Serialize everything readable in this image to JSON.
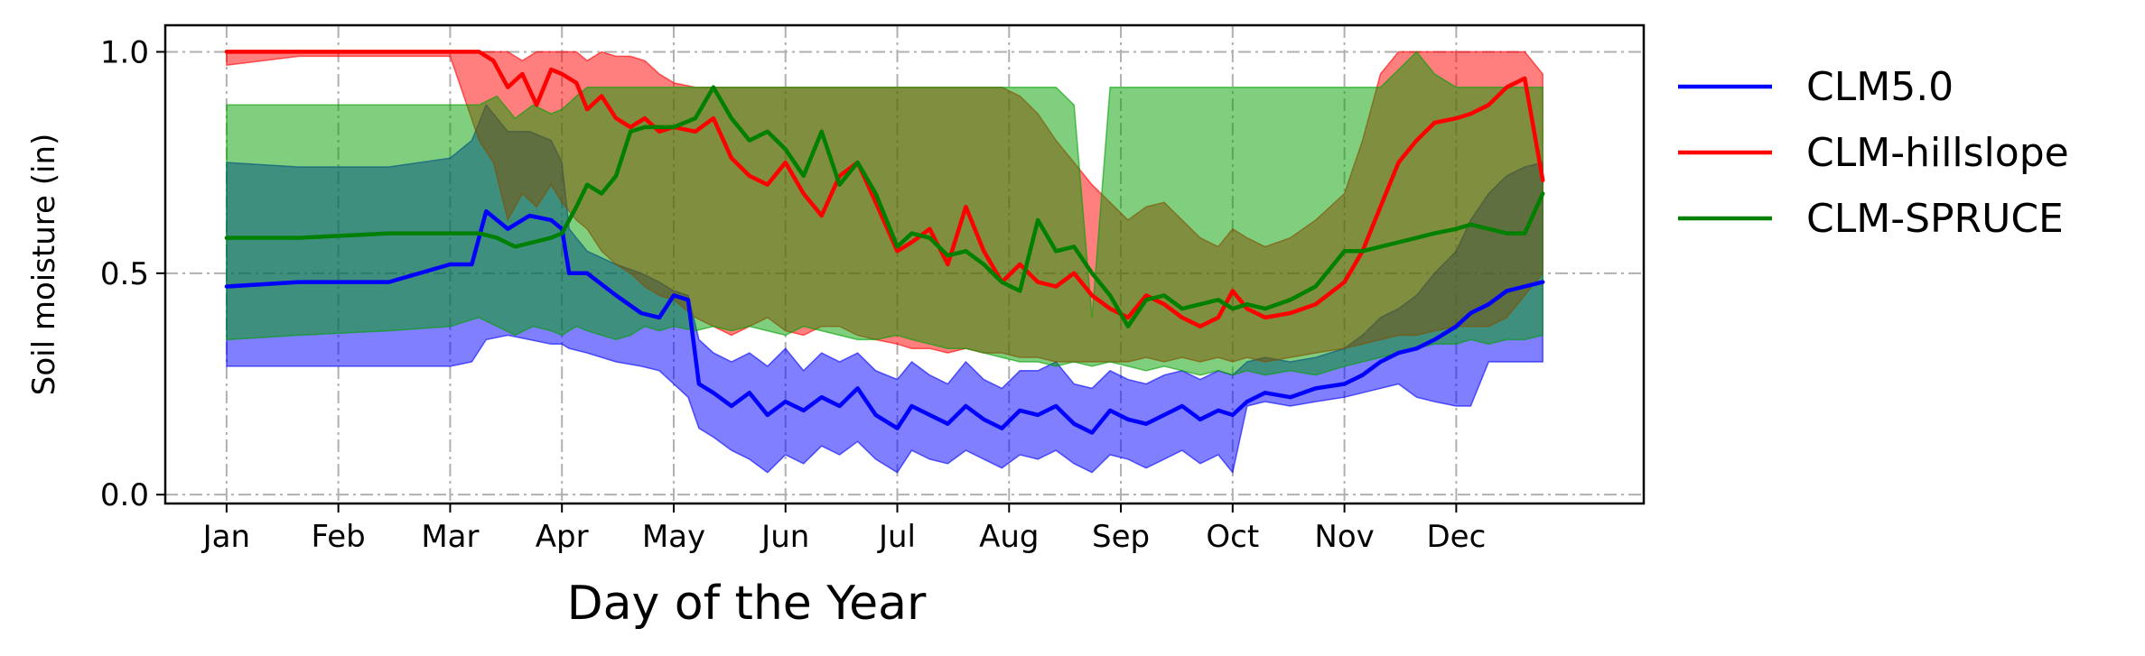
{
  "chart_data": {
    "type": "area",
    "title": "",
    "xlabel": "Day of the Year",
    "ylabel": "Soil moisture (in)",
    "xlim": [
      -17,
      393
    ],
    "ylim": [
      -0.02,
      1.06
    ],
    "x_ticks": [
      {
        "label": "Jan",
        "value": 0
      },
      {
        "label": "Feb",
        "value": 31
      },
      {
        "label": "Mar",
        "value": 62
      },
      {
        "label": "Apr",
        "value": 93
      },
      {
        "label": "May",
        "value": 124
      },
      {
        "label": "Jun",
        "value": 155
      },
      {
        "label": "Jul",
        "value": 186
      },
      {
        "label": "Aug",
        "value": 217
      },
      {
        "label": "Sep",
        "value": 248
      },
      {
        "label": "Oct",
        "value": 279
      },
      {
        "label": "Nov",
        "value": 310
      },
      {
        "label": "Dec",
        "value": 341
      }
    ],
    "y_ticks": [
      {
        "label": "0.0",
        "value": 0.0
      },
      {
        "label": "0.5",
        "value": 0.5
      },
      {
        "label": "1.0",
        "value": 1.0
      }
    ],
    "grid": true,
    "grid_style": "dash-dot",
    "legend_position": "outside-right",
    "series": [
      {
        "name": "CLM5.0",
        "color": "#0000ff",
        "fill_color": "#0000ff",
        "fill_opacity": 0.5,
        "x": [
          0,
          20,
          45,
          62,
          68,
          72,
          78,
          84,
          90,
          93,
          95,
          100,
          108,
          115,
          120,
          124,
          128,
          131,
          135,
          140,
          145,
          150,
          155,
          160,
          165,
          170,
          175,
          180,
          186,
          190,
          195,
          200,
          205,
          210,
          215,
          220,
          225,
          230,
          235,
          240,
          245,
          250,
          255,
          260,
          265,
          270,
          275,
          279,
          283,
          288,
          295,
          302,
          310,
          315,
          320,
          325,
          330,
          335,
          341,
          345,
          350,
          355,
          360,
          365
        ],
        "mean": [
          0.47,
          0.48,
          0.48,
          0.52,
          0.52,
          0.64,
          0.6,
          0.63,
          0.62,
          0.6,
          0.5,
          0.5,
          0.45,
          0.41,
          0.4,
          0.45,
          0.44,
          0.25,
          0.23,
          0.2,
          0.23,
          0.18,
          0.21,
          0.19,
          0.22,
          0.2,
          0.24,
          0.18,
          0.15,
          0.2,
          0.18,
          0.16,
          0.2,
          0.17,
          0.15,
          0.19,
          0.18,
          0.2,
          0.16,
          0.14,
          0.19,
          0.17,
          0.16,
          0.18,
          0.2,
          0.17,
          0.19,
          0.18,
          0.21,
          0.23,
          0.22,
          0.24,
          0.25,
          0.27,
          0.3,
          0.32,
          0.33,
          0.35,
          0.38,
          0.41,
          0.43,
          0.46,
          0.47,
          0.48
        ],
        "upper": [
          0.75,
          0.74,
          0.74,
          0.76,
          0.8,
          0.88,
          0.82,
          0.82,
          0.8,
          0.75,
          0.6,
          0.55,
          0.52,
          0.5,
          0.48,
          0.46,
          0.45,
          0.35,
          0.32,
          0.3,
          0.32,
          0.29,
          0.33,
          0.28,
          0.32,
          0.3,
          0.32,
          0.28,
          0.26,
          0.3,
          0.27,
          0.25,
          0.3,
          0.26,
          0.24,
          0.28,
          0.28,
          0.3,
          0.25,
          0.24,
          0.28,
          0.26,
          0.25,
          0.27,
          0.28,
          0.26,
          0.28,
          0.27,
          0.3,
          0.31,
          0.3,
          0.31,
          0.33,
          0.36,
          0.4,
          0.42,
          0.45,
          0.5,
          0.55,
          0.62,
          0.68,
          0.72,
          0.74,
          0.75
        ],
        "lower": [
          0.29,
          0.29,
          0.29,
          0.29,
          0.3,
          0.35,
          0.36,
          0.35,
          0.34,
          0.34,
          0.33,
          0.32,
          0.3,
          0.29,
          0.28,
          0.25,
          0.22,
          0.15,
          0.13,
          0.1,
          0.08,
          0.05,
          0.09,
          0.07,
          0.11,
          0.09,
          0.12,
          0.08,
          0.05,
          0.1,
          0.08,
          0.07,
          0.1,
          0.08,
          0.06,
          0.09,
          0.08,
          0.1,
          0.07,
          0.05,
          0.09,
          0.08,
          0.06,
          0.08,
          0.1,
          0.07,
          0.09,
          0.05,
          0.2,
          0.21,
          0.2,
          0.21,
          0.22,
          0.23,
          0.24,
          0.25,
          0.22,
          0.21,
          0.2,
          0.2,
          0.3,
          0.3,
          0.3,
          0.3
        ]
      },
      {
        "name": "CLM-hillslope",
        "color": "#ff0000",
        "fill_color": "#ff0000",
        "fill_opacity": 0.5,
        "x": [
          0,
          20,
          45,
          62,
          70,
          74,
          78,
          82,
          86,
          90,
          93,
          97,
          100,
          104,
          108,
          112,
          116,
          120,
          124,
          130,
          135,
          140,
          145,
          150,
          155,
          160,
          165,
          170,
          175,
          180,
          186,
          190,
          195,
          200,
          205,
          210,
          215,
          220,
          225,
          230,
          235,
          240,
          245,
          250,
          255,
          260,
          265,
          270,
          275,
          279,
          283,
          288,
          295,
          302,
          310,
          315,
          320,
          325,
          330,
          335,
          341,
          345,
          350,
          355,
          360,
          365
        ],
        "mean": [
          1.0,
          1.0,
          1.0,
          1.0,
          1.0,
          0.98,
          0.92,
          0.95,
          0.88,
          0.96,
          0.95,
          0.93,
          0.87,
          0.9,
          0.85,
          0.83,
          0.85,
          0.82,
          0.83,
          0.82,
          0.85,
          0.76,
          0.72,
          0.7,
          0.75,
          0.68,
          0.63,
          0.72,
          0.75,
          0.66,
          0.55,
          0.57,
          0.6,
          0.52,
          0.65,
          0.55,
          0.48,
          0.52,
          0.48,
          0.47,
          0.5,
          0.45,
          0.42,
          0.4,
          0.45,
          0.43,
          0.4,
          0.38,
          0.4,
          0.46,
          0.42,
          0.4,
          0.41,
          0.43,
          0.48,
          0.55,
          0.65,
          0.75,
          0.8,
          0.84,
          0.85,
          0.86,
          0.88,
          0.92,
          0.94,
          0.71
        ],
        "upper": [
          1.0,
          1.0,
          1.0,
          1.0,
          1.0,
          1.0,
          1.0,
          0.98,
          1.0,
          1.0,
          1.0,
          1.0,
          0.98,
          1.0,
          0.99,
          0.99,
          0.98,
          0.95,
          0.93,
          0.92,
          0.92,
          0.92,
          0.92,
          0.92,
          0.92,
          0.92,
          0.92,
          0.92,
          0.92,
          0.92,
          0.92,
          0.92,
          0.92,
          0.92,
          0.92,
          0.92,
          0.92,
          0.9,
          0.86,
          0.8,
          0.75,
          0.7,
          0.66,
          0.62,
          0.65,
          0.66,
          0.62,
          0.58,
          0.56,
          0.6,
          0.58,
          0.56,
          0.58,
          0.62,
          0.68,
          0.8,
          0.95,
          1.0,
          1.0,
          1.0,
          1.0,
          1.0,
          1.0,
          1.0,
          1.0,
          0.95
        ],
        "lower": [
          0.97,
          0.99,
          0.99,
          0.99,
          0.8,
          0.75,
          0.62,
          0.68,
          0.65,
          0.7,
          0.66,
          0.62,
          0.6,
          0.55,
          0.52,
          0.5,
          0.47,
          0.45,
          0.44,
          0.4,
          0.38,
          0.36,
          0.38,
          0.4,
          0.37,
          0.36,
          0.38,
          0.38,
          0.36,
          0.35,
          0.34,
          0.33,
          0.33,
          0.32,
          0.33,
          0.32,
          0.32,
          0.31,
          0.31,
          0.3,
          0.3,
          0.3,
          0.3,
          0.3,
          0.31,
          0.3,
          0.31,
          0.3,
          0.31,
          0.3,
          0.31,
          0.3,
          0.31,
          0.32,
          0.33,
          0.34,
          0.35,
          0.36,
          0.36,
          0.37,
          0.38,
          0.38,
          0.38,
          0.4,
          0.45,
          0.5
        ]
      },
      {
        "name": "CLM-SPRUCE",
        "color": "#008000",
        "fill_color": "#00a000",
        "fill_opacity": 0.5,
        "x": [
          0,
          20,
          45,
          62,
          70,
          75,
          80,
          85,
          90,
          93,
          97,
          100,
          104,
          108,
          112,
          116,
          120,
          124,
          130,
          135,
          140,
          145,
          150,
          155,
          160,
          165,
          170,
          175,
          180,
          186,
          190,
          195,
          200,
          205,
          210,
          215,
          220,
          225,
          230,
          235,
          240,
          245,
          250,
          255,
          260,
          265,
          270,
          275,
          279,
          283,
          288,
          295,
          302,
          310,
          315,
          320,
          325,
          330,
          335,
          341,
          345,
          350,
          355,
          360,
          365
        ],
        "mean": [
          0.58,
          0.58,
          0.59,
          0.59,
          0.59,
          0.58,
          0.56,
          0.57,
          0.58,
          0.59,
          0.65,
          0.7,
          0.68,
          0.72,
          0.82,
          0.83,
          0.83,
          0.83,
          0.85,
          0.92,
          0.85,
          0.8,
          0.82,
          0.78,
          0.72,
          0.82,
          0.7,
          0.75,
          0.68,
          0.56,
          0.59,
          0.58,
          0.54,
          0.55,
          0.52,
          0.48,
          0.46,
          0.62,
          0.55,
          0.56,
          0.5,
          0.45,
          0.38,
          0.44,
          0.45,
          0.42,
          0.43,
          0.44,
          0.42,
          0.43,
          0.42,
          0.44,
          0.47,
          0.55,
          0.55,
          0.56,
          0.57,
          0.58,
          0.59,
          0.6,
          0.61,
          0.6,
          0.59,
          0.59,
          0.68
        ],
        "upper": [
          0.88,
          0.88,
          0.88,
          0.88,
          0.88,
          0.9,
          0.85,
          0.88,
          0.86,
          0.87,
          0.9,
          0.92,
          0.92,
          0.92,
          0.92,
          0.92,
          0.92,
          0.92,
          0.92,
          0.92,
          0.92,
          0.92,
          0.92,
          0.92,
          0.92,
          0.92,
          0.92,
          0.92,
          0.92,
          0.92,
          0.92,
          0.92,
          0.92,
          0.92,
          0.92,
          0.92,
          0.92,
          0.92,
          0.92,
          0.88,
          0.4,
          0.92,
          0.92,
          0.92,
          0.92,
          0.92,
          0.92,
          0.92,
          0.92,
          0.92,
          0.92,
          0.92,
          0.92,
          0.92,
          0.92,
          0.92,
          0.96,
          1.0,
          0.95,
          0.92,
          0.92,
          0.92,
          0.92,
          0.92,
          0.92
        ],
        "lower": [
          0.35,
          0.36,
          0.37,
          0.38,
          0.4,
          0.38,
          0.36,
          0.38,
          0.37,
          0.36,
          0.38,
          0.37,
          0.36,
          0.35,
          0.36,
          0.38,
          0.37,
          0.38,
          0.37,
          0.38,
          0.37,
          0.38,
          0.37,
          0.36,
          0.38,
          0.37,
          0.36,
          0.35,
          0.35,
          0.36,
          0.35,
          0.34,
          0.33,
          0.33,
          0.32,
          0.31,
          0.3,
          0.3,
          0.29,
          0.3,
          0.29,
          0.3,
          0.29,
          0.28,
          0.29,
          0.28,
          0.27,
          0.28,
          0.27,
          0.28,
          0.27,
          0.28,
          0.27,
          0.29,
          0.3,
          0.31,
          0.32,
          0.33,
          0.34,
          0.34,
          0.35,
          0.34,
          0.35,
          0.35,
          0.36
        ]
      }
    ]
  }
}
